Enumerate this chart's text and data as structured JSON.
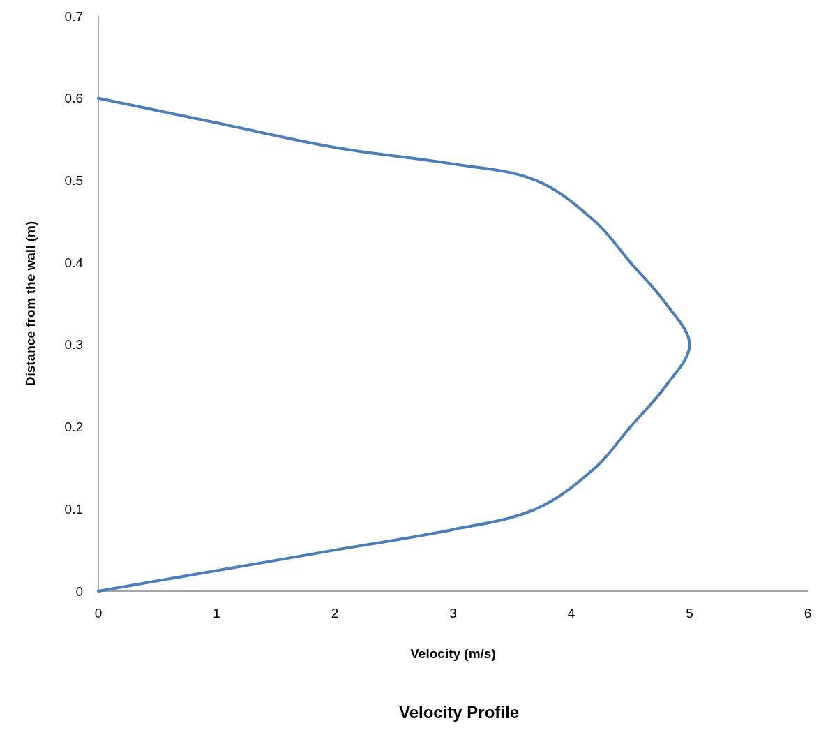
{
  "chart_data": {
    "type": "line",
    "title": "Velocity Profile",
    "xlabel": "Velocity (m/s)",
    "ylabel": "Distance from the wall (m)",
    "xlim": [
      0,
      6
    ],
    "xticks": [
      0,
      1,
      2,
      3,
      4,
      5,
      6
    ],
    "ylim": [
      0,
      0.7
    ],
    "yticks": [
      0,
      0.1,
      0.2,
      0.3,
      0.4,
      0.5,
      0.6,
      0.7
    ],
    "grid": false,
    "marker": "none",
    "line_style": "solid",
    "series": [
      {
        "color": "#4a7ebb",
        "x": [
          0,
          1,
          2,
          3,
          3.7,
          4.2,
          4.5,
          4.8,
          5,
          4.8,
          4.5,
          4.2,
          3.7,
          3,
          2,
          1,
          0
        ],
        "values": [
          0,
          0.025,
          0.05,
          0.075,
          0.1,
          0.15,
          0.2,
          0.25,
          0.3,
          0.35,
          0.4,
          0.45,
          0.5,
          0.52,
          0.54,
          0.57,
          0.6
        ]
      }
    ]
  }
}
